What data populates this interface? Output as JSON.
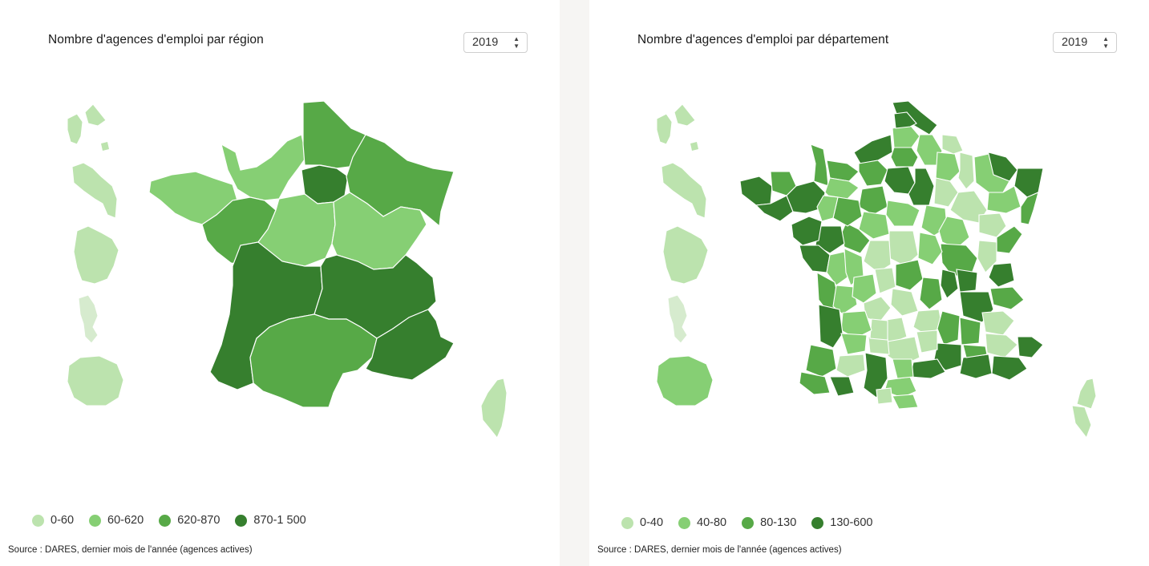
{
  "left": {
    "title": "Nombre d'agences d'emploi par région",
    "year": "2019",
    "legend": [
      {
        "label": "0-60",
        "color": "#bce3ae"
      },
      {
        "label": "60-620",
        "color": "#86cf74"
      },
      {
        "label": "620-870",
        "color": "#57a947"
      },
      {
        "label": "870-1 500",
        "color": "#367f2e"
      }
    ],
    "source": "Source : DARES, dernier mois de l'année (agences actives)"
  },
  "right": {
    "title": "Nombre d'agences d'emploi par département",
    "year": "2019",
    "legend": [
      {
        "label": "0-40",
        "color": "#bce3ae"
      },
      {
        "label": "40-80",
        "color": "#86cf74"
      },
      {
        "label": "80-130",
        "color": "#57a947"
      },
      {
        "label": "130-600",
        "color": "#367f2e"
      }
    ],
    "source": "Source : DARES, dernier mois de l'année (agences actives)"
  }
}
